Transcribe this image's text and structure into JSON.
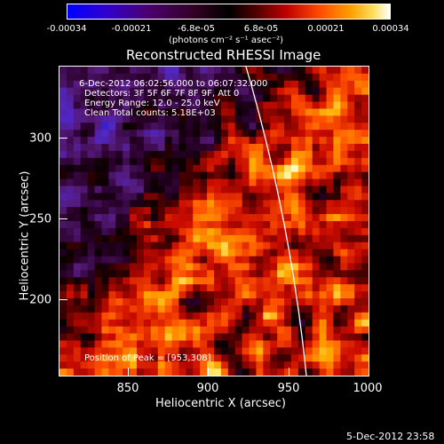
{
  "colorbar": {
    "tick_labels": [
      "-0.00034",
      "-0.00021",
      "-6.8e-05",
      "6.8e-05",
      "0.00021",
      "0.00034"
    ],
    "units_label": "(photons cm⁻² s⁻¹ asec⁻²)"
  },
  "image": {
    "title": "Reconstructed RHESSI Image",
    "info_lines": [
      "6-Dec-2012 06:02:56.000 to 06:07:32.000",
      "Detectors: 3F 5F 6F 7F 8F 9F, Att 0",
      "Energy Range: 12.0 - 25.0 keV",
      "Clean     Total counts: 5.18E+03"
    ],
    "peak_label": "Position of Peak = [953,308]"
  },
  "axes": {
    "xlabel": "Heliocentric X (arcsec)",
    "ylabel": "Heliocentric Y (arcsec)",
    "xticks": [
      "850",
      "900",
      "950",
      "1000"
    ],
    "yticks": [
      "300",
      "250",
      "200"
    ]
  },
  "footer": {
    "timestamp": "5-Dec-2012 23:58"
  },
  "colors": {
    "background": "#000000",
    "limb_line": "#ffffff"
  }
}
